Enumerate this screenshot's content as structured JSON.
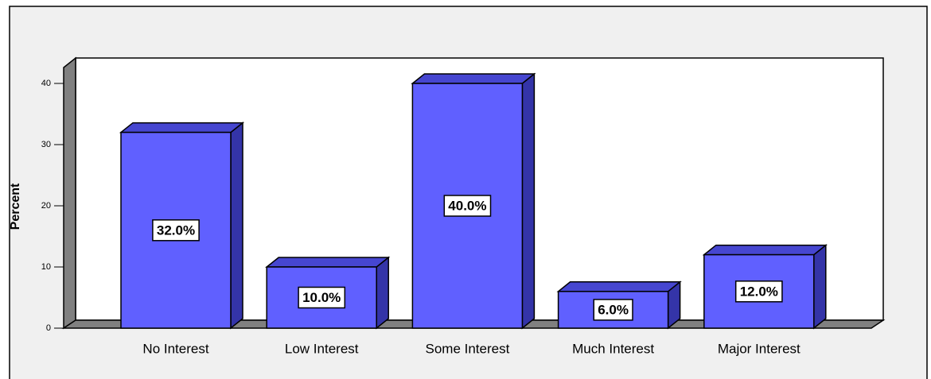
{
  "chart_data": {
    "type": "bar",
    "y_label": "Percent",
    "categories": [
      "No Interest",
      "Low Interest",
      "Some Interest",
      "Much Interest",
      "Major Interest"
    ],
    "values": [
      32,
      10,
      40,
      6,
      12
    ],
    "value_labels": [
      "32.0%",
      "10.0%",
      "40.0%",
      "6.0%",
      "12.0%"
    ],
    "color": "#6060ff",
    "ylim": [
      0,
      40
    ],
    "yticks": [
      0,
      10,
      20,
      30,
      40
    ]
  }
}
